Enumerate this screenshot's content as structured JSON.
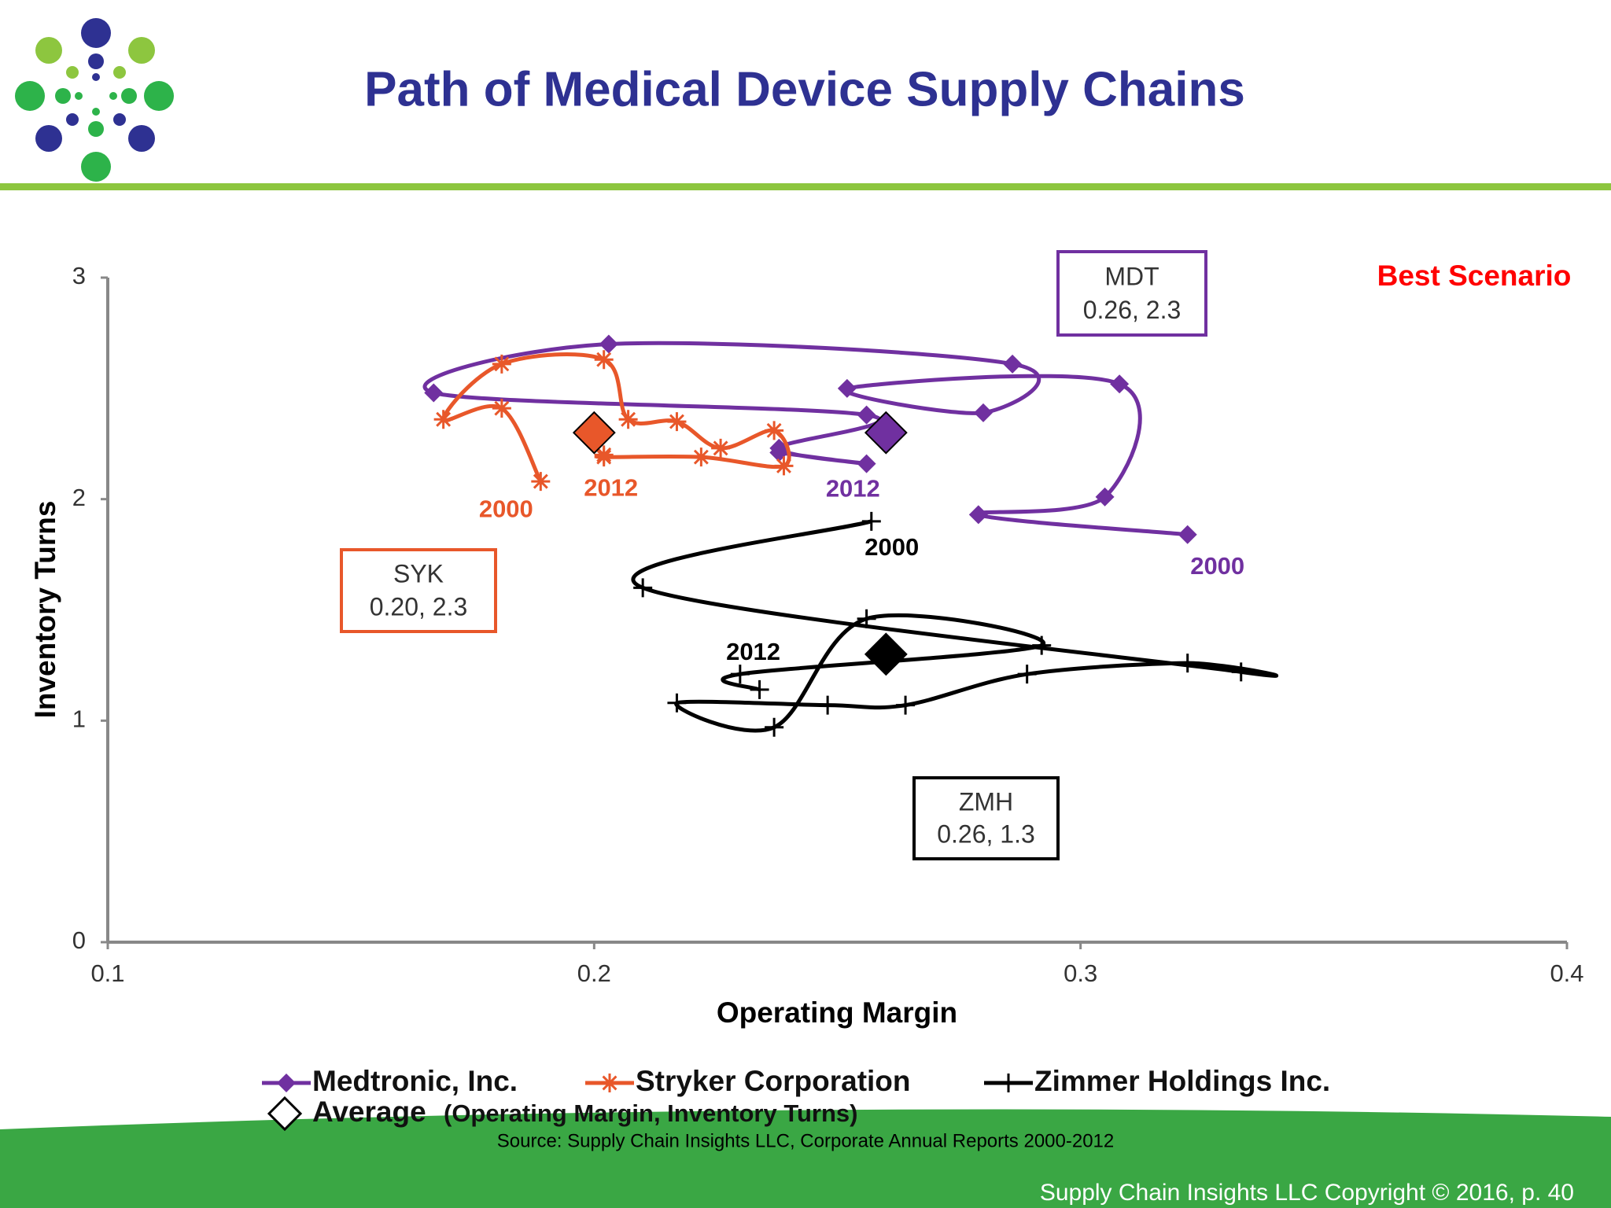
{
  "header": {
    "title": "Path of Medical Device Supply Chains"
  },
  "chart_data": {
    "type": "line",
    "x_label": "Operating Margin",
    "y_label": "Inventory Turns",
    "annotation": "Best Scenario",
    "xlim": [
      0.1,
      0.4
    ],
    "xticks": [
      0.1,
      0.2,
      0.3,
      0.4
    ],
    "ylim": [
      0,
      3
    ],
    "yticks": [
      0,
      1,
      2,
      3
    ],
    "series": [
      {
        "name": "Medtronic, Inc.",
        "color": "#7030a0",
        "marker": "diamond",
        "first_label": "2000",
        "last_label": "2012",
        "x": [
          0.322,
          0.279,
          0.305,
          0.308,
          0.252,
          0.28,
          0.286,
          0.203,
          0.167,
          0.256,
          0.238,
          0.256,
          0.238
        ],
        "values": [
          1.84,
          1.93,
          2.01,
          2.52,
          2.5,
          2.39,
          2.61,
          2.7,
          2.48,
          2.38,
          2.23,
          2.16,
          2.21
        ]
      },
      {
        "name": "Stryker Corporation",
        "color": "#e8572a",
        "marker": "asterisk",
        "first_label": "2000",
        "last_label": "2012",
        "x": [
          0.189,
          0.181,
          0.169,
          0.181,
          0.202,
          0.207,
          0.217,
          0.226,
          0.237,
          0.239,
          0.222,
          0.202,
          0.202
        ],
        "values": [
          2.08,
          2.41,
          2.36,
          2.61,
          2.63,
          2.36,
          2.35,
          2.23,
          2.31,
          2.15,
          2.19,
          2.19,
          2.2
        ]
      },
      {
        "name": "Zimmer Holdings Inc.",
        "color": "#000000",
        "marker": "plus",
        "first_label": "2000",
        "last_label": "2012",
        "x": [
          0.257,
          0.21,
          0.333,
          0.322,
          0.289,
          0.264,
          0.248,
          0.217,
          0.237,
          0.256,
          0.292,
          0.23,
          0.234
        ],
        "values": [
          1.9,
          1.6,
          1.22,
          1.26,
          1.21,
          1.07,
          1.07,
          1.08,
          0.97,
          1.46,
          1.34,
          1.21,
          1.14
        ]
      }
    ],
    "averages": {
      "name": "Average",
      "note": "(Operating Margin, Inventory Turns)",
      "points": [
        {
          "label": "MDT",
          "value_label": "0.26, 2.3",
          "x": 0.26,
          "y": 2.3,
          "color": "#7030a0"
        },
        {
          "label": "SYK",
          "value_label": "0.20, 2.3",
          "x": 0.2,
          "y": 2.3,
          "color": "#e8572a"
        },
        {
          "label": "ZMH",
          "value_label": "0.26, 1.3",
          "x": 0.26,
          "y": 1.3,
          "color": "#000000"
        }
      ]
    }
  },
  "footer": {
    "source": "Source:  Supply Chain Insights LLC, Corporate Annual Reports 2000-2012",
    "copyright": "Supply Chain Insights LLC Copyright © 2016, p. 40"
  }
}
